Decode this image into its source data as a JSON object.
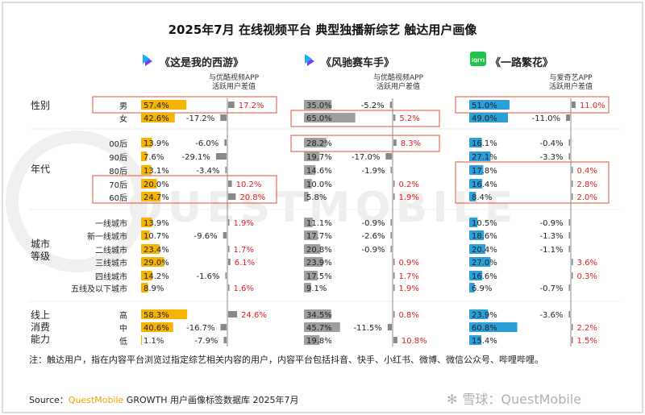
{
  "title": "2025年7月 在线视频平台 典型独播新综艺 触达用户画像",
  "chart_data": [
    {
      "type": "bar",
      "platform_logo": "youku-logo",
      "show": "《这是我的西游》",
      "compare_label_line1": "与优酷视频APP",
      "compare_label_line2": "活跃用户差值",
      "bar_color": "#f5b400",
      "values": [
        57.4,
        42.6,
        13.9,
        7.6,
        13.1,
        20.0,
        24.7,
        13.9,
        10.7,
        23.4,
        29.0,
        14.2,
        8.9,
        58.3,
        40.6,
        1.1
      ],
      "labels": [
        "57.4%",
        "42.6%",
        "13.9%",
        "7.6%",
        "13.1%",
        "20.0%",
        "24.7%",
        "13.9%",
        "10.7%",
        "23.4%",
        "29.0%",
        "14.2%",
        "8.9%",
        "58.3%",
        "40.6%",
        "1.1%"
      ],
      "diffs": [
        17.2,
        -17.2,
        -6.0,
        -29.1,
        -3.4,
        10.2,
        20.8,
        1.9,
        -9.6,
        1.7,
        6.1,
        -1.6,
        1.6,
        24.6,
        -16.7,
        -7.9
      ],
      "diff_labels": [
        "17.2%",
        "-17.2%",
        "-6.0%",
        "-29.1%",
        "-3.4%",
        "10.2%",
        "20.8%",
        "1.9%",
        "-9.6%",
        "1.7%",
        "6.1%",
        "-1.6%",
        "1.6%",
        "24.6%",
        "-16.7%",
        "-7.9%"
      ]
    },
    {
      "type": "bar",
      "platform_logo": "youku-logo",
      "show": "《风驰赛车手》",
      "compare_label_line1": "与优酷视频APP",
      "compare_label_line2": "活跃用户差值",
      "bar_color": "#9e9e9e",
      "values": [
        35.0,
        65.0,
        28.2,
        19.7,
        14.6,
        10.0,
        5.8,
        11.1,
        17.7,
        20.8,
        23.9,
        17.5,
        9.1,
        34.5,
        45.7,
        19.8
      ],
      "labels": [
        "35.0%",
        "65.0%",
        "28.2%",
        "19.7%",
        "14.6%",
        "10.0%",
        "5.8%",
        "11.1%",
        "17.7%",
        "20.8%",
        "23.9%",
        "17.5%",
        "9.1%",
        "34.5%",
        "45.7%",
        "19.8%"
      ],
      "diffs": [
        -5.2,
        5.2,
        8.3,
        -17.0,
        -1.9,
        0.2,
        1.9,
        -0.9,
        -2.6,
        -0.9,
        0.9,
        1.7,
        1.9,
        0.8,
        -11.5,
        10.8
      ],
      "diff_labels": [
        "-5.2%",
        "5.2%",
        "8.3%",
        "-17.0%",
        "-1.9%",
        "0.2%",
        "1.9%",
        "-0.9%",
        "-2.6%",
        "-0.9%",
        "0.9%",
        "1.7%",
        "1.9%",
        "0.8%",
        "-11.5%",
        "10.8%"
      ]
    },
    {
      "type": "bar",
      "platform_logo": "iqiyi-logo",
      "logo_text": "iQIYI",
      "show": "《一路繁花》",
      "compare_label_line1": "与爱奇艺APP",
      "compare_label_line2": "活跃用户差值",
      "bar_color": "#2a9fd8",
      "values": [
        51.0,
        49.0,
        16.1,
        27.1,
        17.8,
        16.4,
        8.4,
        10.5,
        18.6,
        20.4,
        27.0,
        16.6,
        6.9,
        23.9,
        60.8,
        15.4
      ],
      "labels": [
        "51.0%",
        "49.0%",
        "16.1%",
        "27.1%",
        "17.8%",
        "16.4%",
        "8.4%",
        "10.5%",
        "18.6%",
        "20.4%",
        "27.0%",
        "16.6%",
        "6.9%",
        "23.9%",
        "60.8%",
        "15.4%"
      ],
      "diffs": [
        11.0,
        -11.0,
        -0.4,
        -3.3,
        0.4,
        2.8,
        2.0,
        -0.9,
        -1.3,
        -1.1,
        3.6,
        0.3,
        -0.7,
        -3.6,
        2.2,
        1.5
      ],
      "diff_labels": [
        "11.0%",
        "-11.0%",
        "-0.4%",
        "-3.3%",
        "0.4%",
        "2.8%",
        "2.0%",
        "-0.9%",
        "-1.3%",
        "-1.1%",
        "3.6%",
        "0.3%",
        "-0.7%",
        "-3.6%",
        "2.2%",
        "1.5%"
      ]
    }
  ],
  "categories": [
    "男",
    "女",
    "00后",
    "90后",
    "80后",
    "70后",
    "60后",
    "一线城市",
    "新一线城市",
    "二线城市",
    "三线城市",
    "四线城市",
    "五线及以下城市",
    "高",
    "中",
    "低"
  ],
  "groups": [
    {
      "label": "性别"
    },
    {
      "label": "年代"
    },
    {
      "label": "城市\n等级"
    },
    {
      "label": "线上\n消费\n能力"
    }
  ],
  "positive_color": "#e02020",
  "negative_color": "#222222",
  "highlight_color": "#e05030",
  "note": "注：触达用户，指在内容平台浏览过指定综艺相关内容的用户，内容平台包括抖音、快手、小红书、微博、微信公众号、哔哩哔哩。",
  "source_prefix": "Source：",
  "source_brand": "QuestMobile",
  "source_rest": " GROWTH 用户画像标签数据库 2025年7月",
  "watermark_main": "雪球：QuestMobile",
  "watermark_bg": "QUESTMOBILE"
}
